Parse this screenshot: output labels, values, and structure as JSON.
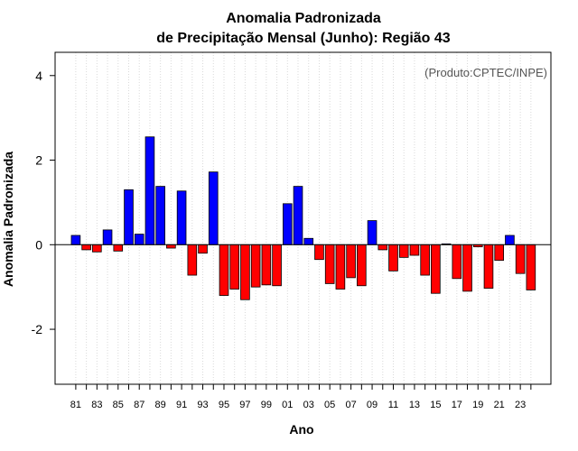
{
  "colors": {
    "positive": "#0000ff",
    "negative": "#ff0000",
    "grid": "#d9d9d9",
    "credit": "#555555"
  },
  "chart_data": {
    "type": "bar",
    "title": [
      "Anomalia Padronizada",
      "de Precipitação Mensal (Junho): Região 43"
    ],
    "xlabel": "Ano",
    "ylabel": "Anomalia Padronizada",
    "credit": "(Produto:CPTEC/INPE)",
    "ylim": [
      -3.3,
      4.55
    ],
    "yticks": [
      -2,
      0,
      2,
      4
    ],
    "ytick_labels": [
      "-2",
      "0",
      "2",
      "4"
    ],
    "grid": "vertical dotted",
    "categories": [
      "1981",
      "1982",
      "1983",
      "1984",
      "1985",
      "1986",
      "1987",
      "1988",
      "1989",
      "1990",
      "1991",
      "1992",
      "1993",
      "1994",
      "1995",
      "1996",
      "1997",
      "1998",
      "1999",
      "2000",
      "2001",
      "2002",
      "2003",
      "2004",
      "2005",
      "2006",
      "2007",
      "2008",
      "2009",
      "2010",
      "2011",
      "2012",
      "2013",
      "2014",
      "2015",
      "2016",
      "2017",
      "2018",
      "2019",
      "2020",
      "2021",
      "2022",
      "2023",
      "2024"
    ],
    "xtick_labels": [
      "81",
      "83",
      "85",
      "87",
      "89",
      "91",
      "93",
      "95",
      "97",
      "99",
      "01",
      "03",
      "05",
      "07",
      "09",
      "11",
      "13",
      "15",
      "17",
      "19",
      "21",
      "23"
    ],
    "xtick_every": 2,
    "values": [
      0.22,
      -0.12,
      -0.17,
      0.35,
      -0.15,
      1.3,
      0.25,
      2.55,
      1.38,
      -0.08,
      1.27,
      -0.72,
      -0.2,
      1.72,
      -1.2,
      -1.05,
      -1.3,
      -1.0,
      -0.95,
      -0.97,
      0.97,
      1.38,
      0.15,
      -0.35,
      -0.92,
      -1.05,
      -0.78,
      -0.97,
      0.57,
      -0.12,
      -0.62,
      -0.3,
      -0.25,
      -0.72,
      -1.15,
      0.02,
      -0.8,
      -1.1,
      -0.05,
      -1.03,
      -0.37,
      0.22,
      -0.68,
      -1.07
    ]
  }
}
